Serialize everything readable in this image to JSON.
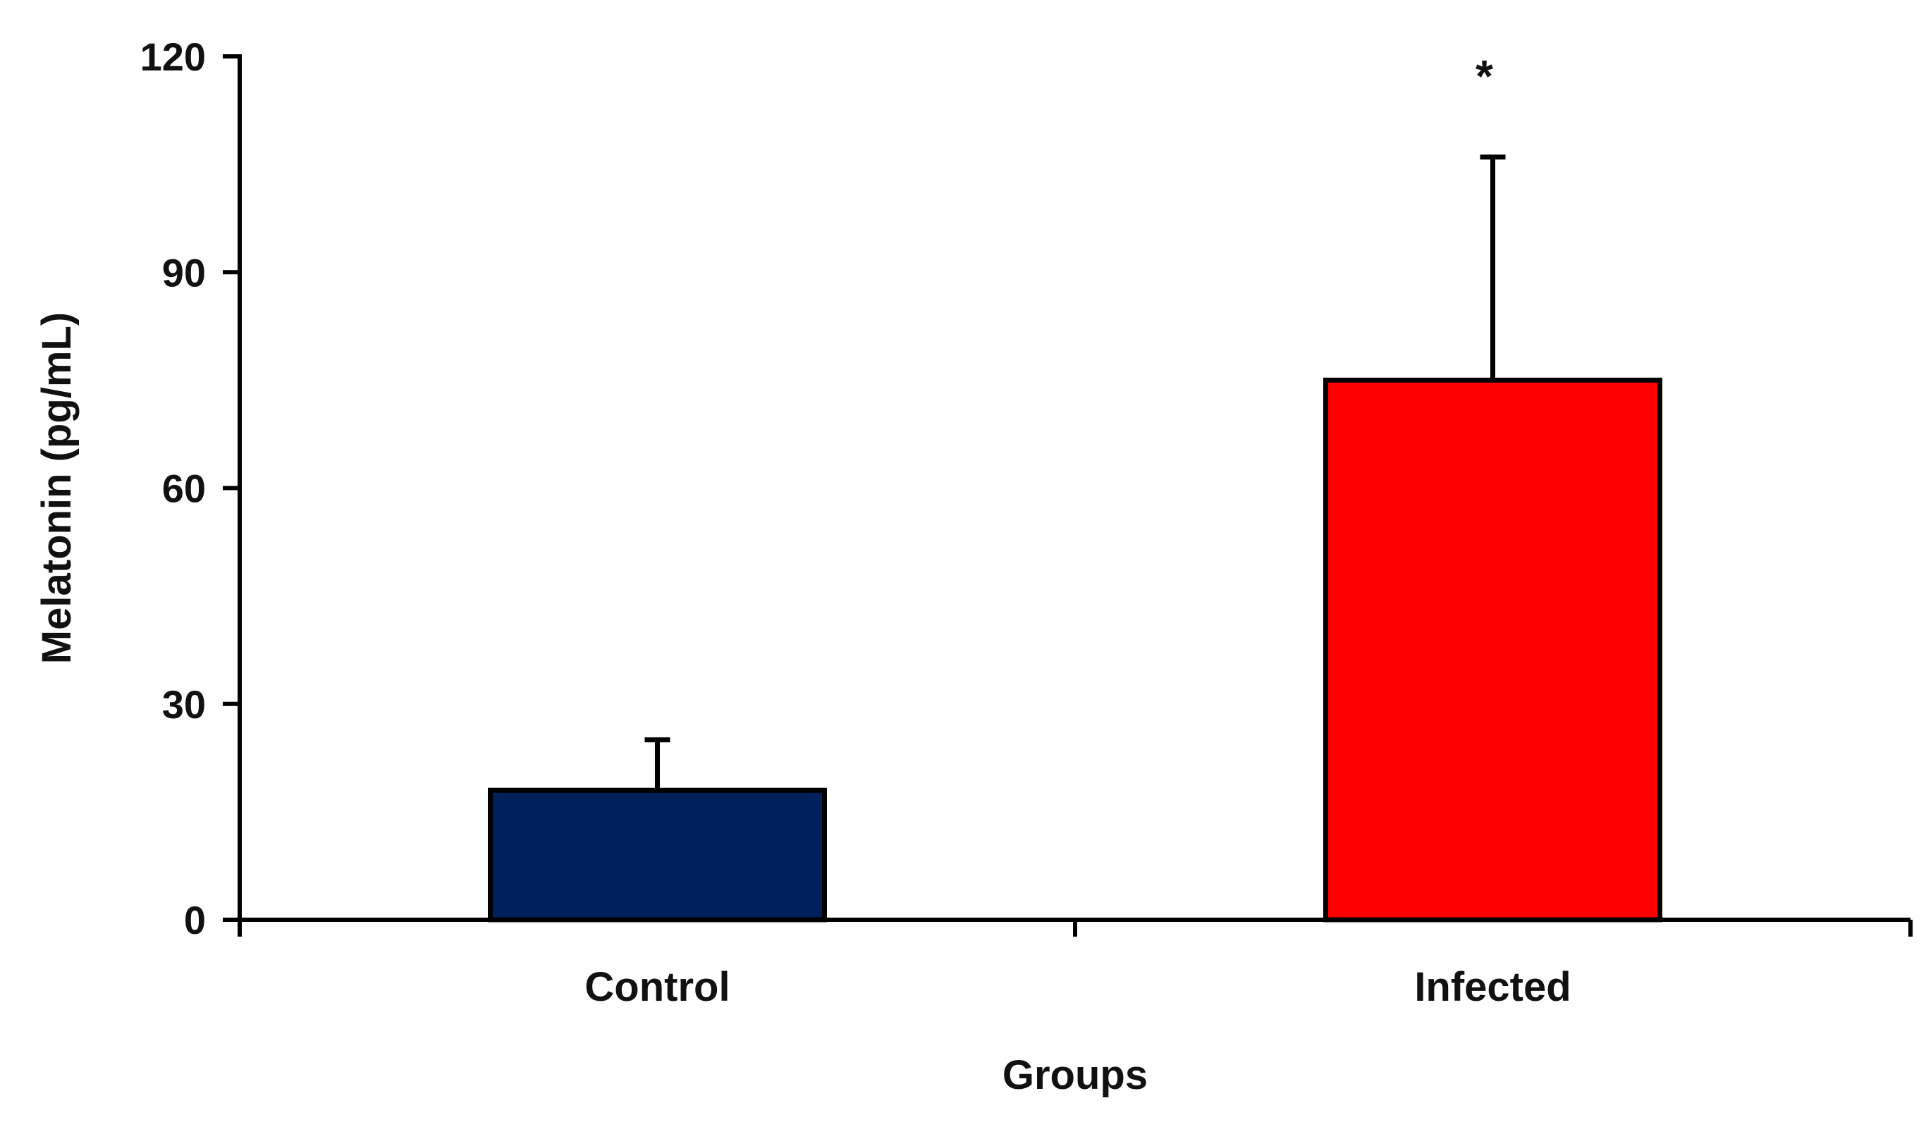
{
  "chart_data": {
    "type": "bar",
    "title": "",
    "xlabel": "Groups",
    "ylabel": "Melatonin (pg/mL)",
    "ylim": [
      0,
      120
    ],
    "yticks": [
      0,
      30,
      60,
      90,
      120
    ],
    "categories": [
      "Control",
      "Infected"
    ],
    "values": [
      18,
      75
    ],
    "errors": [
      7,
      31
    ],
    "colors": [
      "#00205C",
      "#FF0000"
    ],
    "annotations": [
      "",
      "*"
    ],
    "grid": false,
    "legend": "none"
  }
}
